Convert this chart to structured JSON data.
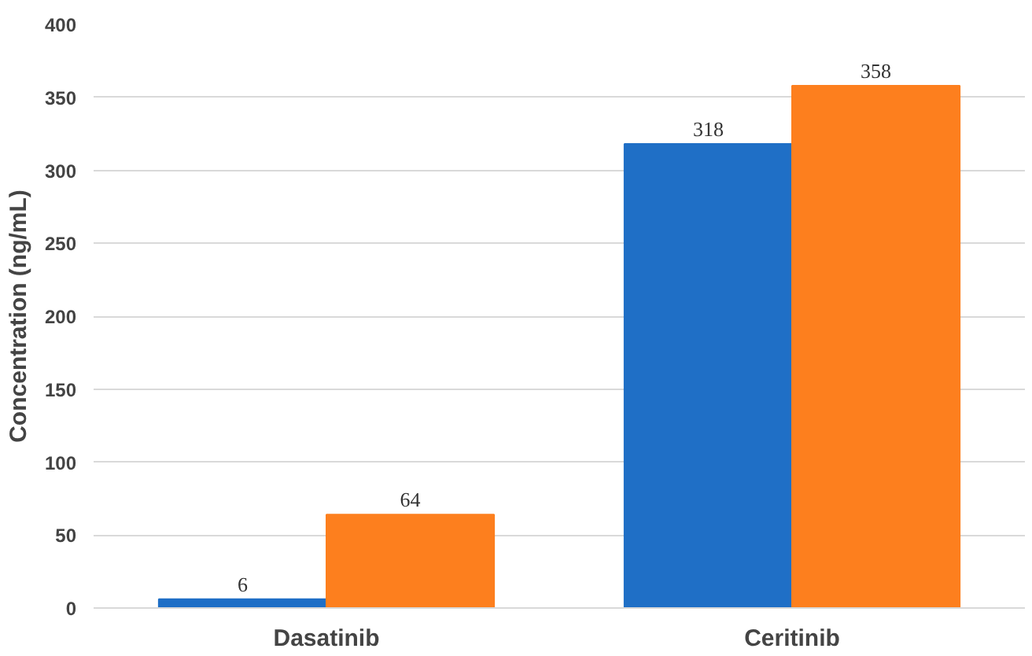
{
  "chart_data": {
    "type": "bar",
    "ylabel": "Concentration (ng/mL)",
    "categories": [
      "Dasatinib",
      "Ceritinib"
    ],
    "series": [
      {
        "color": "#1f6fc6",
        "values": [
          6,
          318
        ]
      },
      {
        "color": "#fd7f1e",
        "values": [
          64,
          358
        ]
      }
    ],
    "ylim": [
      0,
      400
    ],
    "yticks": [
      0,
      50,
      100,
      150,
      200,
      250,
      300,
      350,
      400
    ],
    "grid": "y",
    "data_labels": true
  }
}
